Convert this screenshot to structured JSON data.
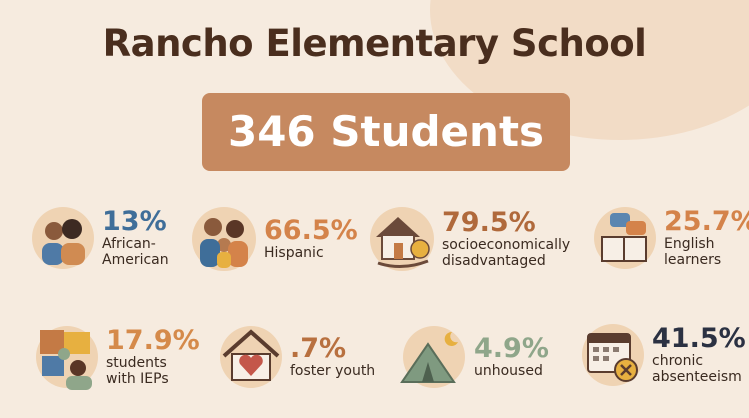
{
  "title": "Rancho Elementary School",
  "banner": "346 Students",
  "stats": [
    {
      "value": "13%",
      "label": "African-American",
      "color": "#3f6e99"
    },
    {
      "value": "66.5%",
      "label": "Hispanic",
      "color": "#d4834a"
    },
    {
      "value": "79.5%",
      "label": "socioeconomically disadvantaged",
      "color": "#b0693b"
    },
    {
      "value": "25.7%",
      "label": "English learners",
      "color": "#d4834a"
    },
    {
      "value": "17.9%",
      "label": "students with IEPs",
      "color": "#d58a4a"
    },
    {
      "value": ".7%",
      "label": "foster youth",
      "color": "#b8703f"
    },
    {
      "value": "4.9%",
      "label": "unhoused",
      "color": "#8fa68a"
    },
    {
      "value": "41.5%",
      "label": "chronic absenteeism",
      "color": "#2b3142"
    }
  ]
}
